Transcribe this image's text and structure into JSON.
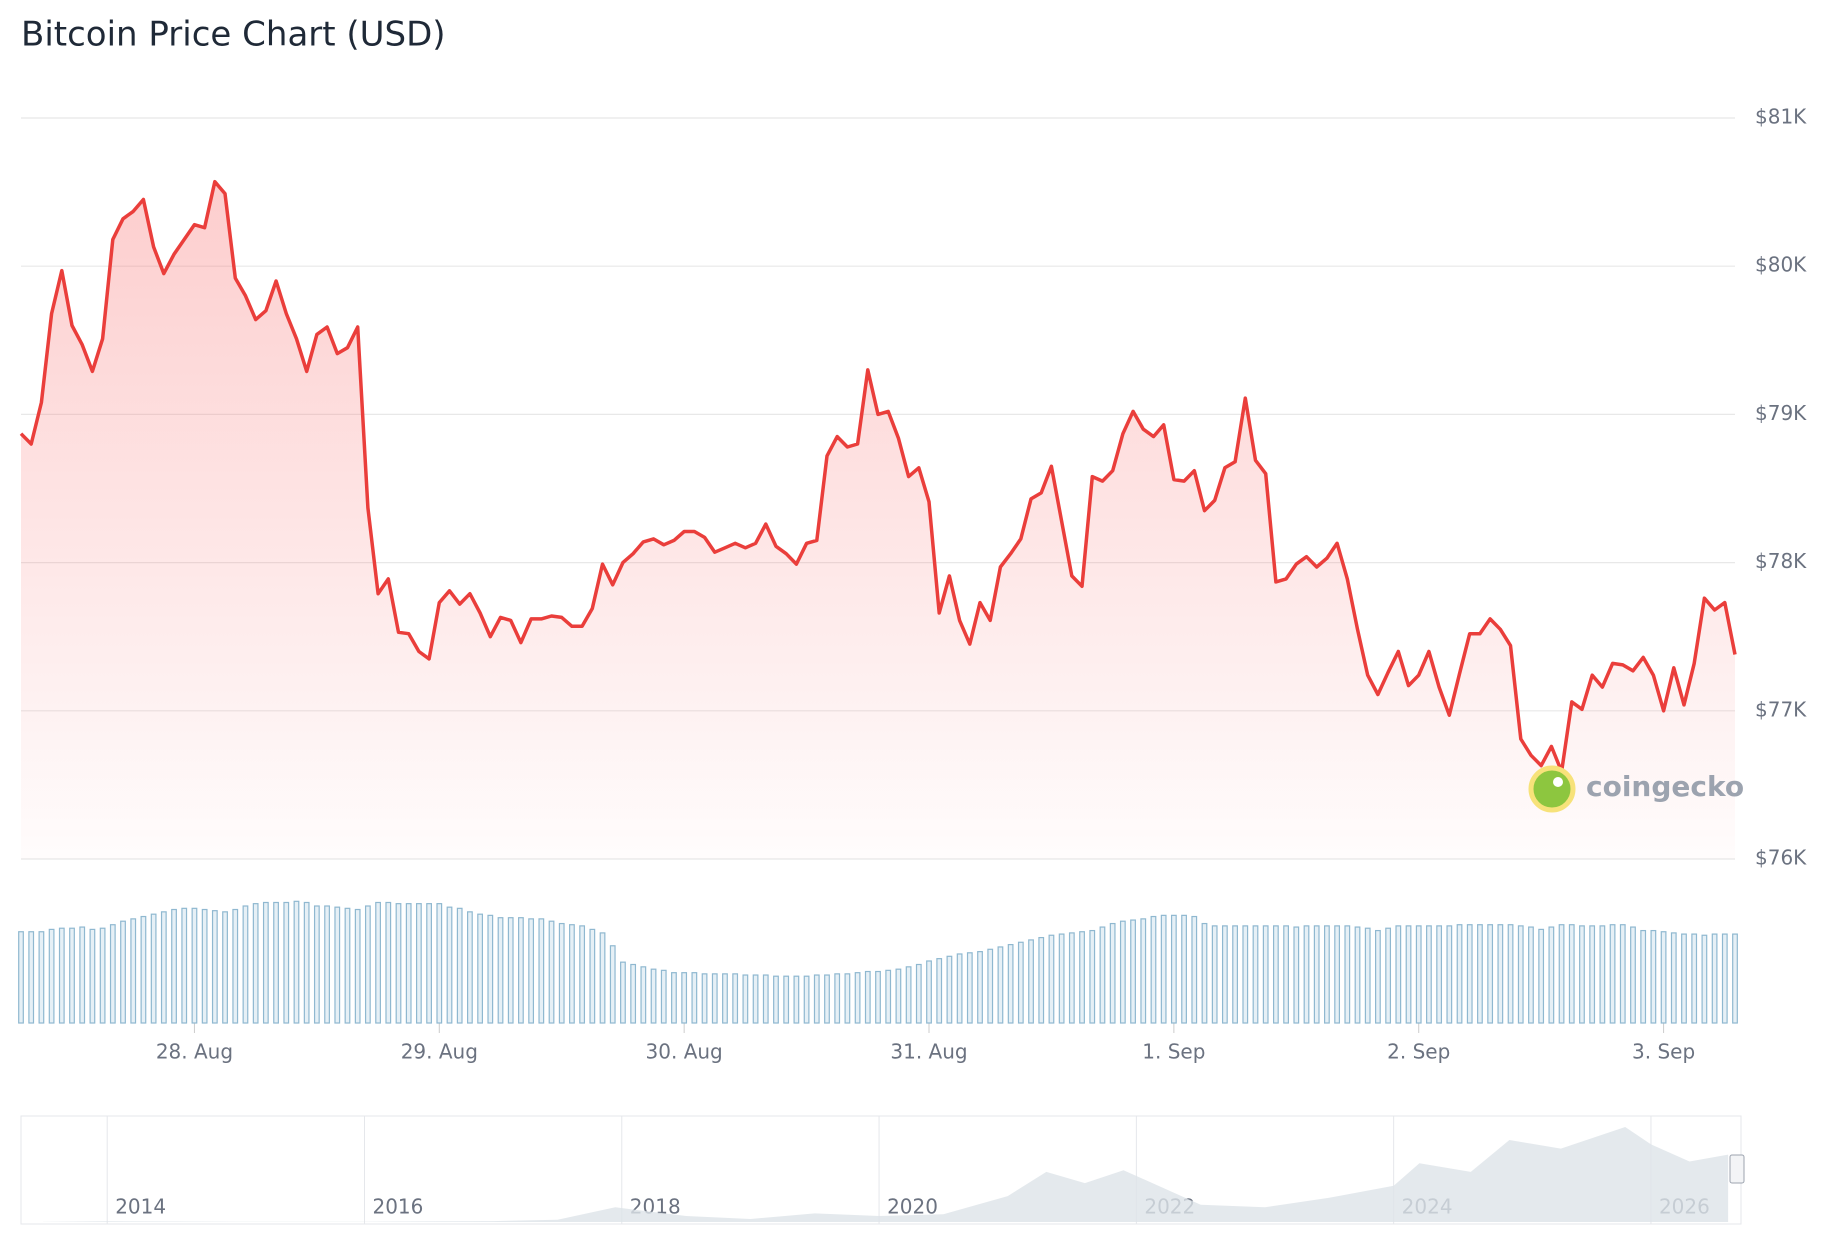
{
  "chart_data": [
    {
      "type": "line",
      "title": "Bitcoin Price Chart (USD)",
      "annotation": "coingecko",
      "color": "#ea3e3b",
      "grid": true,
      "ylim": [
        76000,
        81000
      ],
      "yticks": [
        {
          "value": 76000,
          "label": "$76K"
        },
        {
          "value": 77000,
          "label": "$77K"
        },
        {
          "value": 78000,
          "label": "$78K"
        },
        {
          "value": 79000,
          "label": "$79K"
        },
        {
          "value": 80000,
          "label": "$80K"
        },
        {
          "value": 81000,
          "label": "$81K"
        }
      ],
      "categories": [
        null,
        null,
        null,
        null,
        null,
        null,
        null,
        null,
        null,
        null,
        null,
        null,
        null,
        null,
        null,
        null,
        null,
        "28. Aug",
        null,
        null,
        null,
        null,
        null,
        null,
        null,
        null,
        null,
        null,
        null,
        null,
        null,
        null,
        null,
        null,
        null,
        null,
        null,
        null,
        null,
        null,
        null,
        "29. Aug",
        null,
        null,
        null,
        null,
        null,
        null,
        null,
        null,
        null,
        null,
        null,
        null,
        null,
        null,
        null,
        null,
        null,
        null,
        null,
        null,
        null,
        null,
        null,
        "30. Aug",
        null,
        null,
        null,
        null,
        null,
        null,
        null,
        null,
        null,
        null,
        null,
        null,
        null,
        null,
        null,
        null,
        null,
        null,
        null,
        null,
        null,
        null,
        null,
        "31. Aug",
        null,
        null,
        null,
        null,
        null,
        null,
        null,
        null,
        null,
        null,
        null,
        null,
        null,
        null,
        null,
        null,
        null,
        null,
        null,
        null,
        null,
        null,
        null,
        "1. Sep",
        null,
        null,
        null,
        null,
        null,
        null,
        null,
        null,
        null,
        null,
        null,
        null,
        null,
        null,
        null,
        null,
        null,
        null,
        null,
        null,
        null,
        null,
        null,
        "2. Sep",
        null,
        null,
        null,
        null,
        null,
        null,
        null,
        null,
        null,
        null,
        null,
        null,
        null,
        null,
        null,
        null,
        null,
        null,
        null,
        null,
        null,
        null,
        null,
        "3. Sep",
        null,
        null,
        null,
        null,
        null,
        null,
        null
      ],
      "values": [
        78870,
        78800,
        79080,
        79680,
        79970,
        79600,
        79470,
        79290,
        79510,
        80180,
        80320,
        80370,
        80450,
        80130,
        79950,
        80080,
        80180,
        80280,
        80260,
        80570,
        80490,
        79920,
        79800,
        79640,
        79700,
        79900,
        79680,
        79510,
        79290,
        79540,
        79590,
        79410,
        79450,
        79590,
        78370,
        77790,
        77890,
        77530,
        77520,
        77400,
        77350,
        77730,
        77810,
        77720,
        77790,
        77660,
        77500,
        77630,
        77610,
        77460,
        77620,
        77620,
        77640,
        77630,
        77570,
        77570,
        77690,
        77990,
        77850,
        78000,
        78060,
        78140,
        78160,
        78120,
        78150,
        78210,
        78210,
        78170,
        78070,
        78100,
        78130,
        78100,
        78130,
        78260,
        78110,
        78060,
        77990,
        78130,
        78150,
        78720,
        78850,
        78780,
        78800,
        79300,
        79000,
        79020,
        78840,
        78580,
        78640,
        78410,
        77660,
        77910,
        77610,
        77450,
        77730,
        77610,
        77970,
        78060,
        78160,
        78430,
        78470,
        78650,
        78280,
        77910,
        77840,
        78580,
        78550,
        78620,
        78870,
        79020,
        78900,
        78850,
        78930,
        78560,
        78550,
        78620,
        78350,
        78420,
        78640,
        78680,
        79110,
        78690,
        78600,
        77870,
        77890,
        77990,
        78040,
        77970,
        78030,
        78130,
        77890,
        77550,
        77240,
        77110,
        77260,
        77400,
        77170,
        77240,
        77400,
        77160,
        76970,
        77250,
        77520,
        77520,
        77620,
        77550,
        77440,
        76810,
        76700,
        76630,
        76760,
        76590,
        77060,
        77010,
        77240,
        77160,
        77320,
        77310,
        77270,
        77360,
        77240,
        77000,
        77290,
        77040,
        77320,
        77760,
        77680,
        77730,
        77380
      ]
    },
    {
      "type": "bar",
      "color": "#8fb8d0",
      "values": [
        78,
        78,
        78,
        80,
        81,
        81,
        82,
        80,
        81,
        84,
        87,
        89,
        91,
        93,
        95,
        97,
        98,
        98,
        97,
        96,
        95,
        97,
        100,
        102,
        103,
        103,
        103,
        104,
        103,
        100,
        100,
        99,
        98,
        97,
        100,
        103,
        103,
        102,
        102,
        102,
        102,
        102,
        99,
        98,
        95,
        93,
        92,
        90,
        90,
        90,
        89,
        89,
        87,
        85,
        84,
        83,
        80,
        77,
        66,
        52,
        50,
        48,
        46,
        45,
        43,
        43,
        43,
        42,
        42,
        42,
        42,
        41,
        41,
        41,
        40,
        40,
        40,
        40,
        41,
        41,
        42,
        42,
        43,
        44,
        44,
        45,
        46,
        48,
        50,
        53,
        55,
        57,
        59,
        60,
        61,
        63,
        65,
        67,
        69,
        71,
        73,
        75,
        76,
        77,
        78,
        79,
        82,
        85,
        87,
        88,
        89,
        91,
        92,
        92,
        92,
        91,
        85,
        83,
        83,
        83,
        83,
        83,
        83,
        83,
        83,
        82,
        83,
        83,
        83,
        83,
        83,
        82,
        81,
        79,
        81,
        83,
        83,
        83,
        83,
        83,
        83,
        84,
        84,
        84,
        84,
        84,
        84,
        83,
        82,
        80,
        82,
        84,
        84,
        83,
        83,
        83,
        84,
        84,
        82,
        79,
        79,
        78,
        77,
        76,
        76,
        75,
        76,
        76,
        76
      ]
    },
    {
      "type": "area",
      "color": "#dde3e8",
      "xlim": [
        2013.33,
        2026.7
      ],
      "xticks": [
        2014,
        2016,
        2018,
        2020,
        2022,
        2024,
        2026
      ],
      "x": [
        2013.5,
        2014,
        2014.5,
        2015,
        2015.5,
        2016,
        2016.5,
        2017,
        2017.5,
        2017.95,
        2018.5,
        2019,
        2019.5,
        2020,
        2020.5,
        2021,
        2021.3,
        2021.6,
        2021.9,
        2022.5,
        2023,
        2023.5,
        2024,
        2024.2,
        2024.6,
        2024.9,
        2025.3,
        2025.8,
        2026,
        2026.3,
        2026.6
      ],
      "values": [
        0.1,
        0.8,
        0.6,
        0.3,
        0.25,
        0.4,
        0.65,
        1,
        2.5,
        17,
        7,
        3.5,
        10,
        7,
        9,
        30,
        58,
        45,
        60,
        20,
        17,
        28,
        42,
        68,
        58,
        95,
        85,
        110,
        90,
        70,
        78
      ]
    }
  ]
}
